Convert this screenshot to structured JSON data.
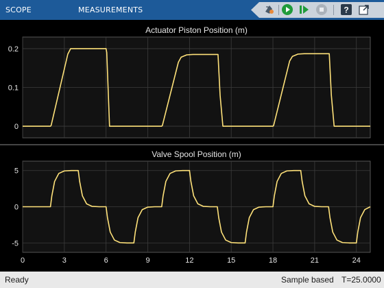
{
  "toolbar": {
    "tabs": [
      "SCOPE",
      "MEASUREMENTS"
    ],
    "buttons": [
      {
        "name": "simulink-model-icon"
      },
      {
        "name": "run-icon",
        "color": "#1f9b3a"
      },
      {
        "name": "step-forward-icon",
        "color": "#1f9b3a"
      },
      {
        "name": "stop-icon",
        "color": "#8d96a0"
      },
      {
        "name": "help-icon"
      },
      {
        "name": "undock-icon"
      }
    ]
  },
  "colors": {
    "toolbar": "#1d5a99",
    "axes_background": "#121212",
    "grid": "#3c3c3c",
    "axis_text": "#e6e6e6",
    "trace": "#ffe27a"
  },
  "status": {
    "ready": "Ready",
    "mode": "Sample based",
    "time": "T=25.0000"
  },
  "chart_data": [
    {
      "type": "line",
      "title": "Actuator Piston Position (m)",
      "xlim": [
        0,
        25
      ],
      "ylim": [
        -0.03,
        0.23
      ],
      "yticks": [
        0,
        0.1,
        0.2
      ],
      "ytick_labels": [
        "0",
        "0.1",
        "0.2"
      ],
      "xticks": [
        0,
        3,
        6,
        9,
        12,
        15,
        18,
        21,
        24
      ],
      "grid": true,
      "series": [
        {
          "color": "#ffe27a",
          "x": [
            0,
            2,
            2.05,
            3.25,
            3.45,
            6,
            6.05,
            6.25,
            10,
            10.05,
            11.2,
            11.4,
            11.8,
            12.25,
            14.05,
            14.2,
            14.4,
            18,
            18.05,
            19.2,
            19.4,
            19.8,
            20.25,
            22.05,
            22.2,
            22.4,
            25
          ],
          "y": [
            0,
            0,
            0.002,
            0.186,
            0.2,
            0.2,
            0.19,
            0,
            0,
            0.002,
            0.165,
            0.178,
            0.184,
            0.185,
            0.185,
            0.08,
            0,
            0,
            0.002,
            0.168,
            0.18,
            0.186,
            0.187,
            0.187,
            0.08,
            0,
            0
          ]
        }
      ]
    },
    {
      "type": "line",
      "title": "Valve Spool Position (m)",
      "xlim": [
        0,
        25
      ],
      "ylim": [
        -6.3,
        6.3
      ],
      "yticks": [
        -5,
        0,
        5
      ],
      "ytick_labels": [
        "-5",
        "0",
        "5"
      ],
      "xticks": [
        0,
        3,
        6,
        9,
        12,
        15,
        18,
        21,
        24
      ],
      "xtick_labels": [
        "0",
        "3",
        "6",
        "9",
        "12",
        "15",
        "18",
        "21",
        "24"
      ],
      "grid": true,
      "series": [
        {
          "color": "#ffe27a",
          "x": [
            0,
            2,
            2.1,
            2.3,
            2.6,
            3,
            3.5,
            4,
            4.1,
            4.3,
            4.6,
            5,
            5.5,
            6,
            6.1,
            6.3,
            6.6,
            7,
            7.5,
            8,
            8.1,
            8.3,
            8.6,
            9,
            9.5,
            10,
            10.1,
            10.3,
            10.6,
            11,
            11.5,
            12,
            12.1,
            12.3,
            12.6,
            13,
            13.5,
            14,
            14.1,
            14.3,
            14.6,
            15,
            15.5,
            16,
            16.1,
            16.3,
            16.6,
            17,
            17.5,
            18,
            18.1,
            18.3,
            18.6,
            19,
            19.5,
            20,
            20.1,
            20.3,
            20.6,
            21,
            21.5,
            22,
            22.1,
            22.3,
            22.6,
            23,
            23.5,
            24,
            24.1,
            24.3,
            24.6,
            25
          ],
          "y": [
            0,
            0,
            1.5,
            3.5,
            4.6,
            4.95,
            5,
            5,
            3.5,
            1.5,
            0.4,
            0.05,
            0,
            0,
            -1.5,
            -3.5,
            -4.6,
            -4.95,
            -5,
            -5,
            -3.5,
            -1.5,
            -0.4,
            -0.05,
            0,
            0,
            1.5,
            3.5,
            4.6,
            4.95,
            5,
            5,
            3.5,
            1.5,
            0.4,
            0.05,
            0,
            0,
            -1.5,
            -3.5,
            -4.6,
            -4.95,
            -5,
            -5,
            -3.5,
            -1.5,
            -0.4,
            -0.05,
            0,
            0,
            1.5,
            3.5,
            4.6,
            4.95,
            5,
            5,
            3.5,
            1.5,
            0.4,
            0.05,
            0,
            0,
            -1.5,
            -3.5,
            -4.6,
            -4.95,
            -5,
            -5,
            -3.5,
            -1.5,
            -0.4,
            0
          ]
        }
      ]
    }
  ]
}
